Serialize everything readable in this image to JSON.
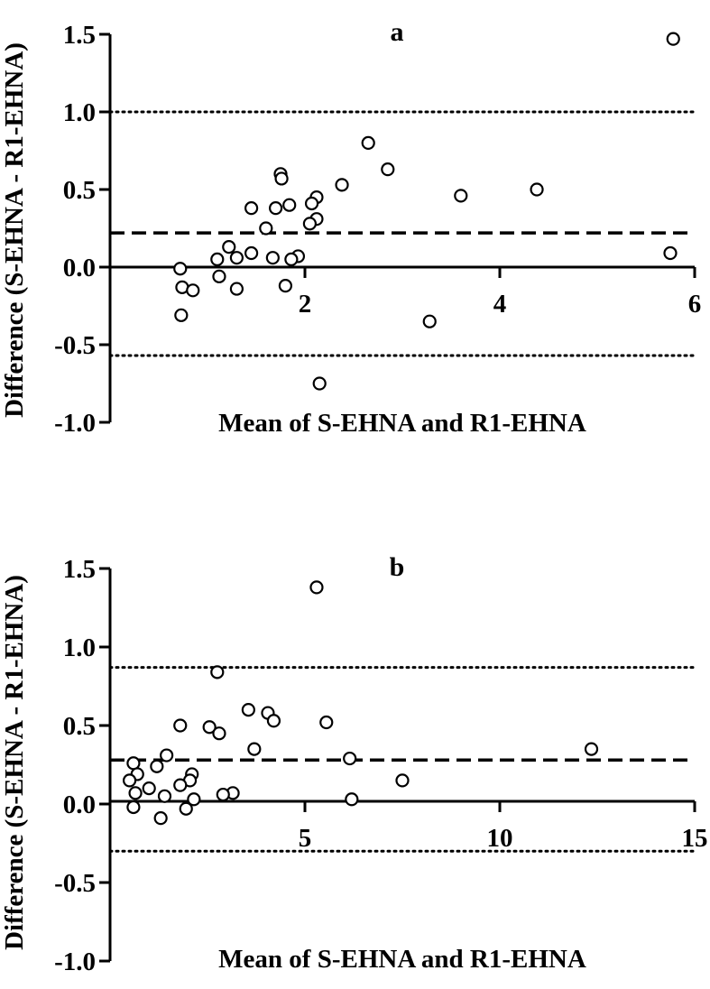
{
  "chart_data": [
    {
      "type": "scatter",
      "panel_label": "a",
      "xlabel": "Mean of S-EHNA and R1-EHNA",
      "ylabel": "Difference (S-EHNA - R1-EHNA)",
      "xlim": [
        0,
        6
      ],
      "ylim": [
        -1.0,
        1.5
      ],
      "x_ticks": [
        2,
        4,
        6
      ],
      "x_tick_labels": [
        "2",
        "4",
        "6"
      ],
      "y_ticks": [
        1.5,
        1.0,
        0.5,
        0.0,
        -0.5,
        -1.0
      ],
      "y_tick_labels": [
        "1.5",
        "1.0",
        "0.5",
        "0.0",
        "-0.5",
        "-1.0"
      ],
      "mean_difference": 0.22,
      "upper_limit": 1.0,
      "lower_limit": -0.57,
      "points": [
        [
          5.78,
          1.47
        ],
        [
          2.65,
          0.8
        ],
        [
          2.85,
          0.63
        ],
        [
          1.75,
          0.6
        ],
        [
          1.76,
          0.57
        ],
        [
          2.38,
          0.53
        ],
        [
          4.38,
          0.5
        ],
        [
          3.6,
          0.46
        ],
        [
          2.12,
          0.45
        ],
        [
          2.07,
          0.41
        ],
        [
          1.84,
          0.4
        ],
        [
          1.45,
          0.38
        ],
        [
          1.7,
          0.38
        ],
        [
          2.12,
          0.31
        ],
        [
          2.05,
          0.28
        ],
        [
          1.6,
          0.25
        ],
        [
          1.22,
          0.13
        ],
        [
          1.45,
          0.09
        ],
        [
          5.75,
          0.09
        ],
        [
          1.93,
          0.07
        ],
        [
          1.67,
          0.06
        ],
        [
          1.86,
          0.05
        ],
        [
          1.3,
          0.06
        ],
        [
          1.1,
          0.05
        ],
        [
          0.72,
          -0.01
        ],
        [
          1.12,
          -0.06
        ],
        [
          0.74,
          -0.13
        ],
        [
          0.85,
          -0.15
        ],
        [
          1.3,
          -0.14
        ],
        [
          1.8,
          -0.12
        ],
        [
          0.73,
          -0.31
        ],
        [
          3.28,
          -0.35
        ],
        [
          2.15,
          -0.75
        ]
      ]
    },
    {
      "type": "scatter",
      "panel_label": "b",
      "xlabel": "Mean of S-EHNA and R1-EHNA",
      "ylabel": "Difference (S-EHNA - R1-EHNA)",
      "xlim": [
        0,
        15
      ],
      "ylim": [
        -1.0,
        1.5
      ],
      "x_ticks": [
        5,
        10,
        15
      ],
      "x_tick_labels": [
        "5",
        "10",
        "15"
      ],
      "y_ticks": [
        1.5,
        1.0,
        0.5,
        0.0,
        -0.5,
        -1.0
      ],
      "y_tick_labels": [
        "1.5",
        "1.0",
        "0.5",
        "0.0",
        "-0.5",
        "-1.0"
      ],
      "mean_difference": 0.28,
      "upper_limit": 0.87,
      "lower_limit": -0.3,
      "points": [
        [
          5.3,
          1.38
        ],
        [
          2.75,
          0.84
        ],
        [
          3.55,
          0.6
        ],
        [
          4.05,
          0.58
        ],
        [
          4.2,
          0.53
        ],
        [
          5.55,
          0.52
        ],
        [
          1.8,
          0.5
        ],
        [
          2.55,
          0.49
        ],
        [
          2.8,
          0.45
        ],
        [
          3.7,
          0.35
        ],
        [
          12.35,
          0.35
        ],
        [
          1.45,
          0.31
        ],
        [
          6.15,
          0.29
        ],
        [
          0.6,
          0.26
        ],
        [
          1.2,
          0.24
        ],
        [
          0.7,
          0.19
        ],
        [
          2.1,
          0.19
        ],
        [
          2.05,
          0.15
        ],
        [
          0.5,
          0.15
        ],
        [
          1.8,
          0.12
        ],
        [
          1.0,
          0.1
        ],
        [
          0.65,
          0.07
        ],
        [
          7.5,
          0.15
        ],
        [
          3.15,
          0.07
        ],
        [
          2.9,
          0.06
        ],
        [
          1.4,
          0.05
        ],
        [
          2.15,
          0.03
        ],
        [
          6.2,
          0.03
        ],
        [
          0.6,
          -0.02
        ],
        [
          1.95,
          -0.03
        ],
        [
          1.3,
          -0.09
        ]
      ]
    }
  ]
}
